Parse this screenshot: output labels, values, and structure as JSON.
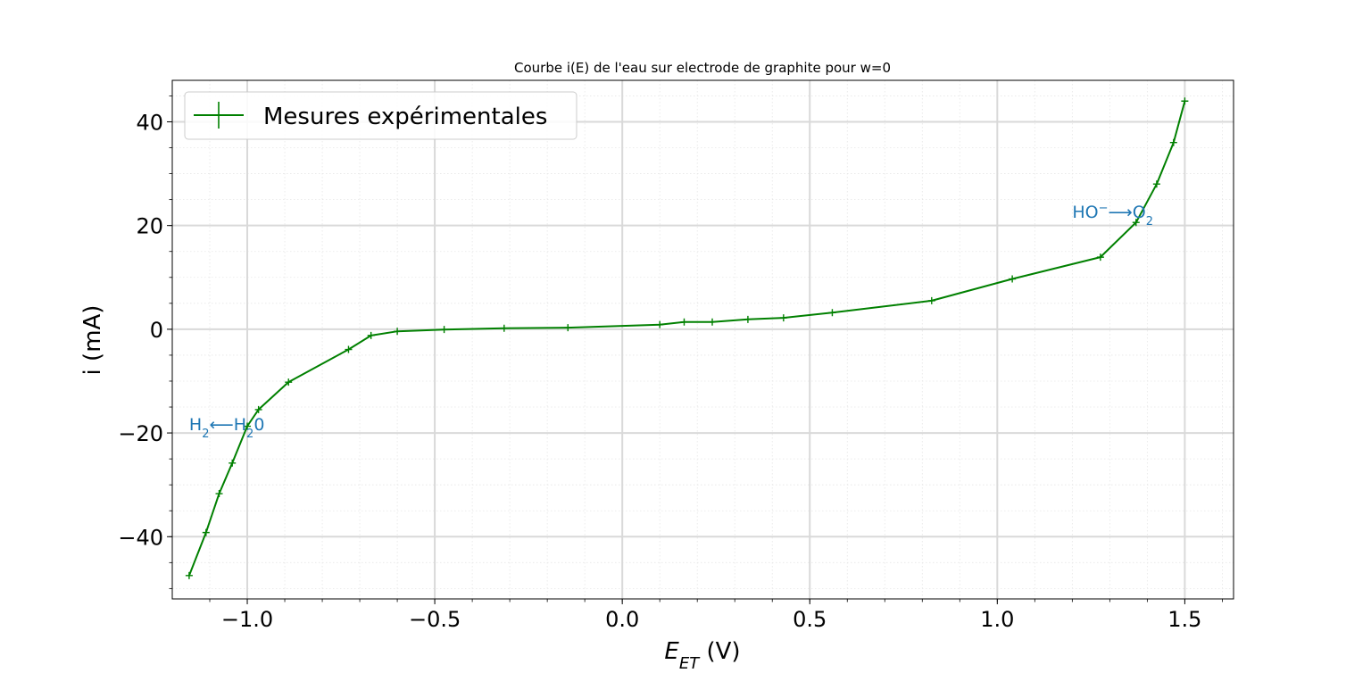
{
  "chart_data": {
    "type": "line",
    "title": "Courbe i(E) de l'eau sur electrode de graphite pour w=0",
    "xlabel": {
      "main": "E",
      "sub": "ET",
      "unit": " (V)"
    },
    "ylabel": "i (mA)",
    "xlim": [
      -1.2,
      1.63
    ],
    "ylim": [
      -52,
      48
    ],
    "x_ticks": [
      -1.0,
      -0.5,
      0.0,
      0.5,
      1.0,
      1.5
    ],
    "x_tick_labels": [
      "−1.0",
      "−0.5",
      "0.0",
      "0.5",
      "1.0",
      "1.5"
    ],
    "y_ticks": [
      -40,
      -20,
      0,
      20,
      40
    ],
    "y_tick_labels": [
      "−40",
      "−20",
      "0",
      "20",
      "40"
    ],
    "grid": true,
    "minor_grid": true,
    "legend_position": "top-left",
    "series": [
      {
        "name": "Mesures expérimentales",
        "color": "#008000",
        "marker": "plus",
        "x": [
          -1.155,
          -1.11,
          -1.075,
          -1.04,
          -1.0,
          -0.97,
          -0.89,
          -0.73,
          -0.67,
          -0.6,
          -0.475,
          -0.315,
          -0.145,
          0.1,
          0.165,
          0.24,
          0.335,
          0.43,
          0.56,
          0.825,
          1.04,
          1.275,
          1.37,
          1.425,
          1.47,
          1.5
        ],
        "y": [
          -47.5,
          -39.2,
          -31.7,
          -25.8,
          -18.7,
          -15.5,
          -10.2,
          -3.9,
          -1.2,
          -0.4,
          -0.05,
          0.2,
          0.3,
          0.9,
          1.4,
          1.4,
          1.9,
          2.2,
          3.2,
          5.5,
          9.7,
          13.9,
          20.6,
          28.0,
          36.0,
          44.0
        ]
      }
    ],
    "annotations": [
      {
        "id": "h2",
        "x": -1.155,
        "y": -19.5,
        "color": "#1f77b4",
        "left": "H",
        "left_sub": "2",
        "arrow": "⟵",
        "right": "H",
        "right_sub": "2",
        "right_tail": "0"
      },
      {
        "id": "o2",
        "x": 1.2,
        "y": 21.5,
        "color": "#1f77b4",
        "left": "HO",
        "left_sup": "−",
        "arrow": "⟶",
        "right": "O",
        "right_sub": "2"
      }
    ]
  }
}
